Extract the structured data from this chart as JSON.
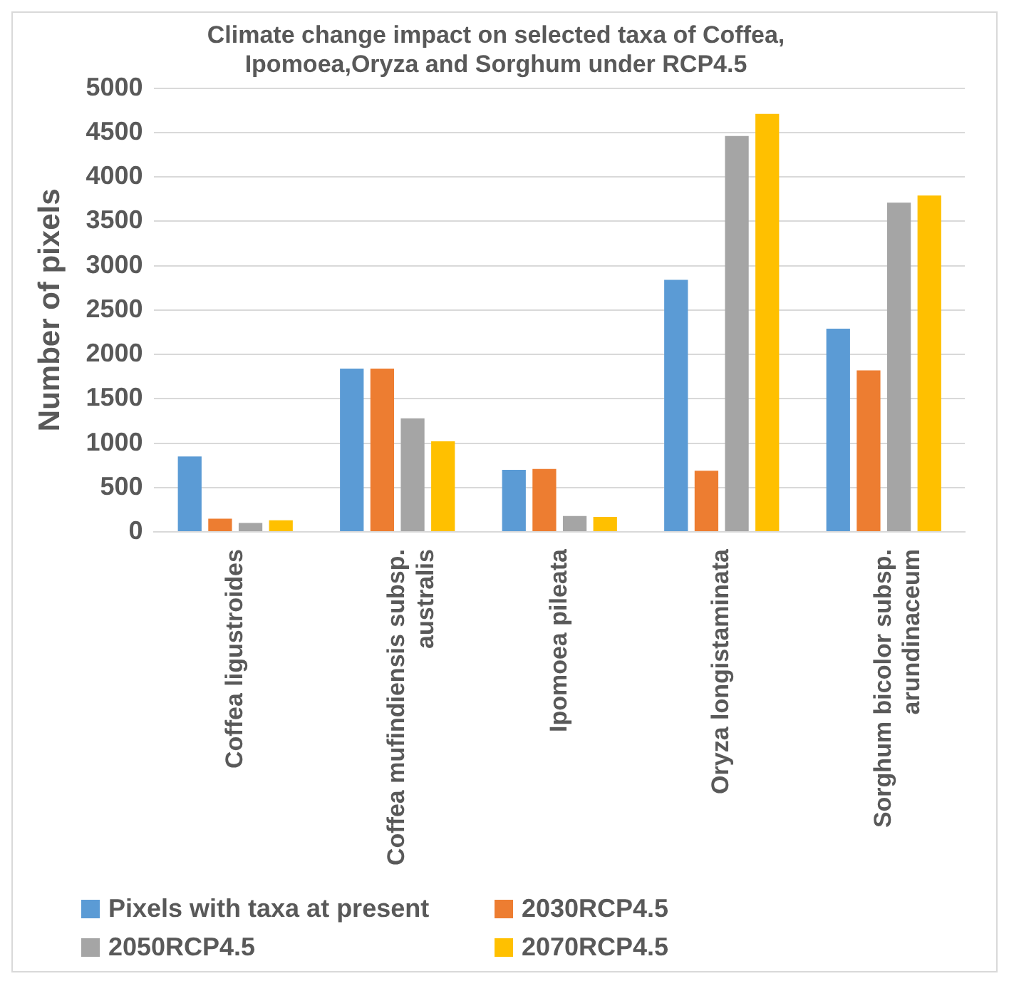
{
  "chart_data": {
    "type": "bar",
    "title": "Climate change impact on selected taxa of Coffea, Ipomoea,Oryza and Sorghum under RCP4.5",
    "ylabel": "Number of pixels",
    "categories": [
      "Coffea ligustroides",
      "Coffea mufindiensis subsp. australis",
      "Ipomoea pileata",
      "Oryza longistaminata",
      "Sorghum bicolor subsp. arundinaceum"
    ],
    "series": [
      {
        "name": "Pixels with taxa at present",
        "color": "#5b9bd5",
        "values": [
          850,
          1840,
          700,
          2840,
          2290
        ]
      },
      {
        "name": "2030RCP4.5",
        "color": "#ed7d31",
        "values": [
          150,
          1840,
          710,
          690,
          1820
        ]
      },
      {
        "name": "2050RCP4.5",
        "color": "#a5a5a5",
        "values": [
          100,
          1280,
          180,
          4460,
          3710
        ]
      },
      {
        "name": "2070RCP4.5",
        "color": "#ffc000",
        "values": [
          130,
          1020,
          170,
          4710,
          3790
        ]
      }
    ],
    "ylim": [
      0,
      5000
    ],
    "yticks": [
      0,
      500,
      1000,
      1500,
      2000,
      2500,
      3000,
      3500,
      4000,
      4500,
      5000
    ],
    "grid": "y",
    "legend": "bottom"
  }
}
